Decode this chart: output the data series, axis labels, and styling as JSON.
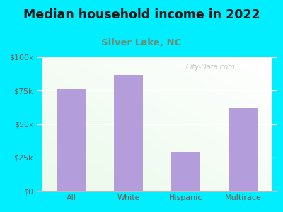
{
  "title": "Median household income in 2022",
  "subtitle": "Silver Lake, NC",
  "categories": [
    "All",
    "White",
    "Hispanic",
    "Multirace"
  ],
  "values": [
    76000,
    87000,
    29000,
    62000
  ],
  "bar_color": "#b39ddb",
  "title_color": "#1a1a1a",
  "subtitle_color": "#6e8b74",
  "tick_label_color": "#6e5a4e",
  "background_outer": "#00eeff",
  "ylim": [
    0,
    100000
  ],
  "yticks": [
    0,
    25000,
    50000,
    75000,
    100000
  ],
  "ytick_labels": [
    "$0",
    "$25k",
    "$50k",
    "$75k",
    "$100k"
  ],
  "watermark": "City-Data.com",
  "title_fontsize": 12.5,
  "subtitle_fontsize": 9.5,
  "tick_fontsize": 8
}
